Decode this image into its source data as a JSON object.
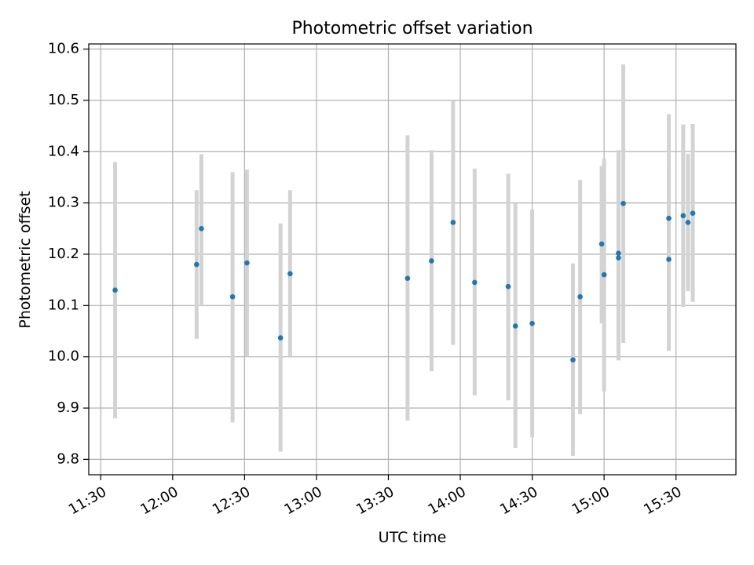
{
  "chart_data": {
    "type": "scatter",
    "title": "Photometric offset variation",
    "xlabel": "UTC time",
    "ylabel": "Photometric offset",
    "x_tick_labels": [
      "11:30",
      "12:00",
      "12:30",
      "13:00",
      "13:30",
      "14:00",
      "14:30",
      "15:00",
      "15:30"
    ],
    "y_tick_labels": [
      "9.8",
      "9.9",
      "10.0",
      "10.1",
      "10.2",
      "10.3",
      "10.4",
      "10.5",
      "10.6"
    ],
    "xlim": [
      "11:25",
      "15:55"
    ],
    "ylim": [
      9.77,
      10.61
    ],
    "grid": true,
    "errorbar_color": "#d3d3d3",
    "point_color": "#1f77b4",
    "points": [
      {
        "x": "11:36",
        "y": 10.13,
        "err_low": 9.88,
        "err_high": 10.38
      },
      {
        "x": "12:10",
        "y": 10.18,
        "err_low": 10.035,
        "err_high": 10.325
      },
      {
        "x": "12:12",
        "y": 10.25,
        "err_low": 10.1,
        "err_high": 10.395
      },
      {
        "x": "12:25",
        "y": 10.117,
        "err_low": 9.872,
        "err_high": 10.36
      },
      {
        "x": "12:31",
        "y": 10.183,
        "err_low": 10.0,
        "err_high": 10.365
      },
      {
        "x": "12:45",
        "y": 10.037,
        "err_low": 9.815,
        "err_high": 10.26
      },
      {
        "x": "12:49",
        "y": 10.162,
        "err_low": 10.0,
        "err_high": 10.325
      },
      {
        "x": "13:38",
        "y": 10.153,
        "err_low": 9.876,
        "err_high": 10.432
      },
      {
        "x": "13:48",
        "y": 10.187,
        "err_low": 9.972,
        "err_high": 10.403
      },
      {
        "x": "13:57",
        "y": 10.262,
        "err_low": 10.023,
        "err_high": 10.5
      },
      {
        "x": "14:06",
        "y": 10.145,
        "err_low": 9.925,
        "err_high": 10.367
      },
      {
        "x": "14:20",
        "y": 10.137,
        "err_low": 9.915,
        "err_high": 10.357
      },
      {
        "x": "14:23",
        "y": 10.06,
        "err_low": 9.822,
        "err_high": 10.3
      },
      {
        "x": "14:30",
        "y": 10.065,
        "err_low": 9.843,
        "err_high": 10.287
      },
      {
        "x": "14:47",
        "y": 9.994,
        "err_low": 9.807,
        "err_high": 10.182
      },
      {
        "x": "14:50",
        "y": 10.117,
        "err_low": 9.888,
        "err_high": 10.345
      },
      {
        "x": "14:59",
        "y": 10.22,
        "err_low": 10.065,
        "err_high": 10.372
      },
      {
        "x": "15:00",
        "y": 10.16,
        "err_low": 9.932,
        "err_high": 10.386
      },
      {
        "x": "15:06",
        "y": 10.193,
        "err_low": 9.993,
        "err_high": 10.4
      },
      {
        "x": "15:06",
        "y": 10.202,
        "err_low": 10.0,
        "err_high": 10.403
      },
      {
        "x": "15:08",
        "y": 10.299,
        "err_low": 10.027,
        "err_high": 10.57
      },
      {
        "x": "15:27",
        "y": 10.27,
        "err_low": 10.066,
        "err_high": 10.473
      },
      {
        "x": "15:27",
        "y": 10.19,
        "err_low": 10.012,
        "err_high": 10.367
      },
      {
        "x": "15:33",
        "y": 10.275,
        "err_low": 10.097,
        "err_high": 10.453
      },
      {
        "x": "15:35",
        "y": 10.262,
        "err_low": 10.128,
        "err_high": 10.396
      },
      {
        "x": "15:37",
        "y": 10.28,
        "err_low": 10.107,
        "err_high": 10.454
      }
    ]
  }
}
